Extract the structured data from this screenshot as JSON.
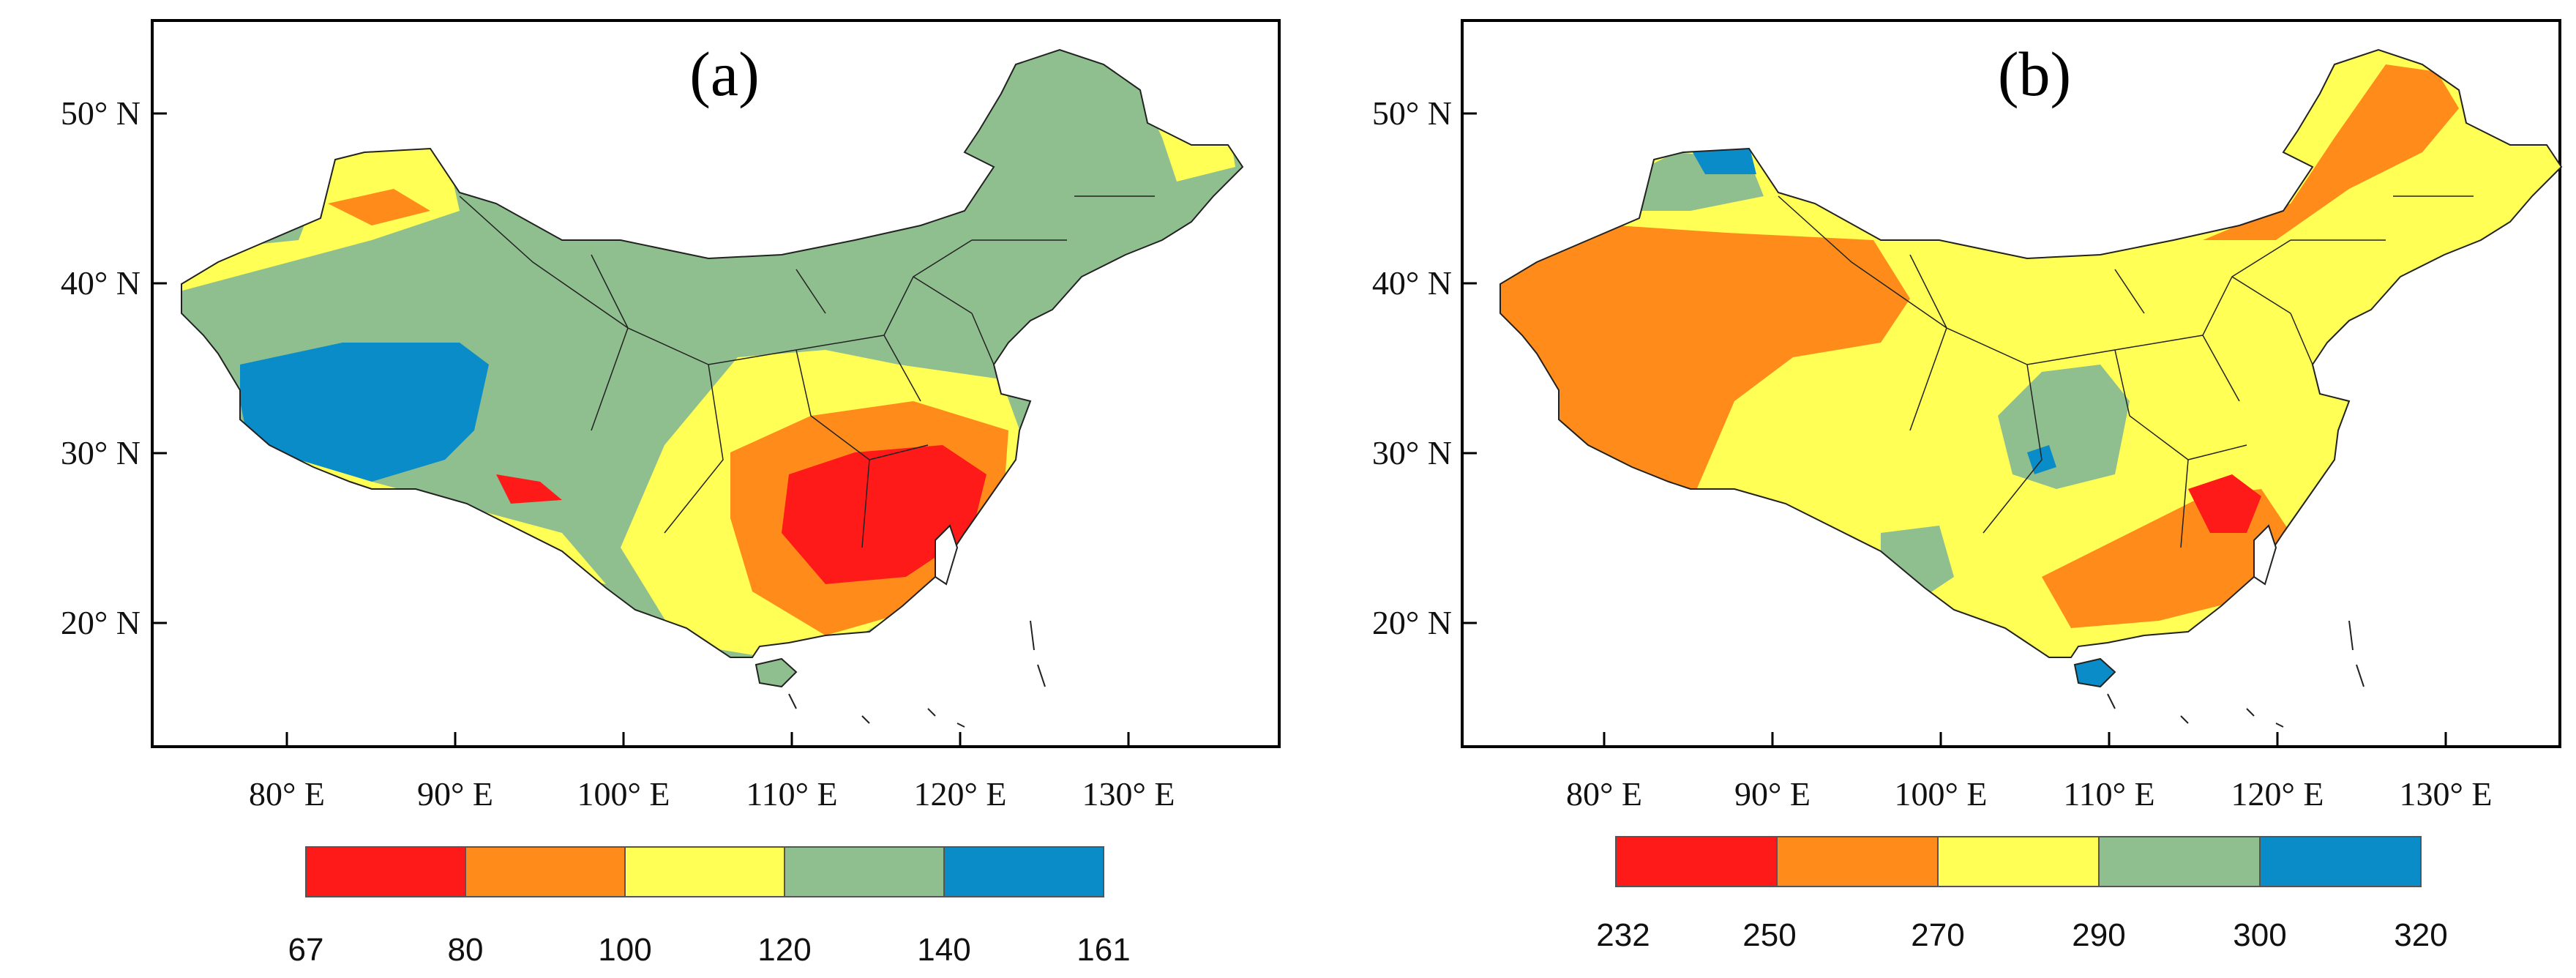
{
  "panels": [
    {
      "label": "(a)",
      "x_ticks": [
        "80° E",
        "90° E",
        "100° E",
        "110° E",
        "120° E",
        "130° E"
      ],
      "y_ticks": [
        "50° N",
        "40° N",
        "30° N",
        "20° N"
      ],
      "legend": {
        "colors": [
          "#ff1a1a",
          "#ff8c1a",
          "#ffff55",
          "#8fbf8f",
          "#0a8cc8"
        ],
        "values": [
          "67",
          "80",
          "100",
          "120",
          "140",
          "161"
        ]
      }
    },
    {
      "label": "(b)",
      "x_ticks": [
        "80° E",
        "90° E",
        "100° E",
        "110° E",
        "120° E",
        "130° E"
      ],
      "y_ticks": [
        "50° N",
        "40° N",
        "30° N",
        "20° N"
      ],
      "legend": {
        "colors": [
          "#ff1a1a",
          "#ff8c1a",
          "#ffff55",
          "#8fbf8f",
          "#0a8cc8"
        ],
        "values": [
          "232",
          "250",
          "270",
          "290",
          "300",
          "320"
        ]
      }
    }
  ]
}
